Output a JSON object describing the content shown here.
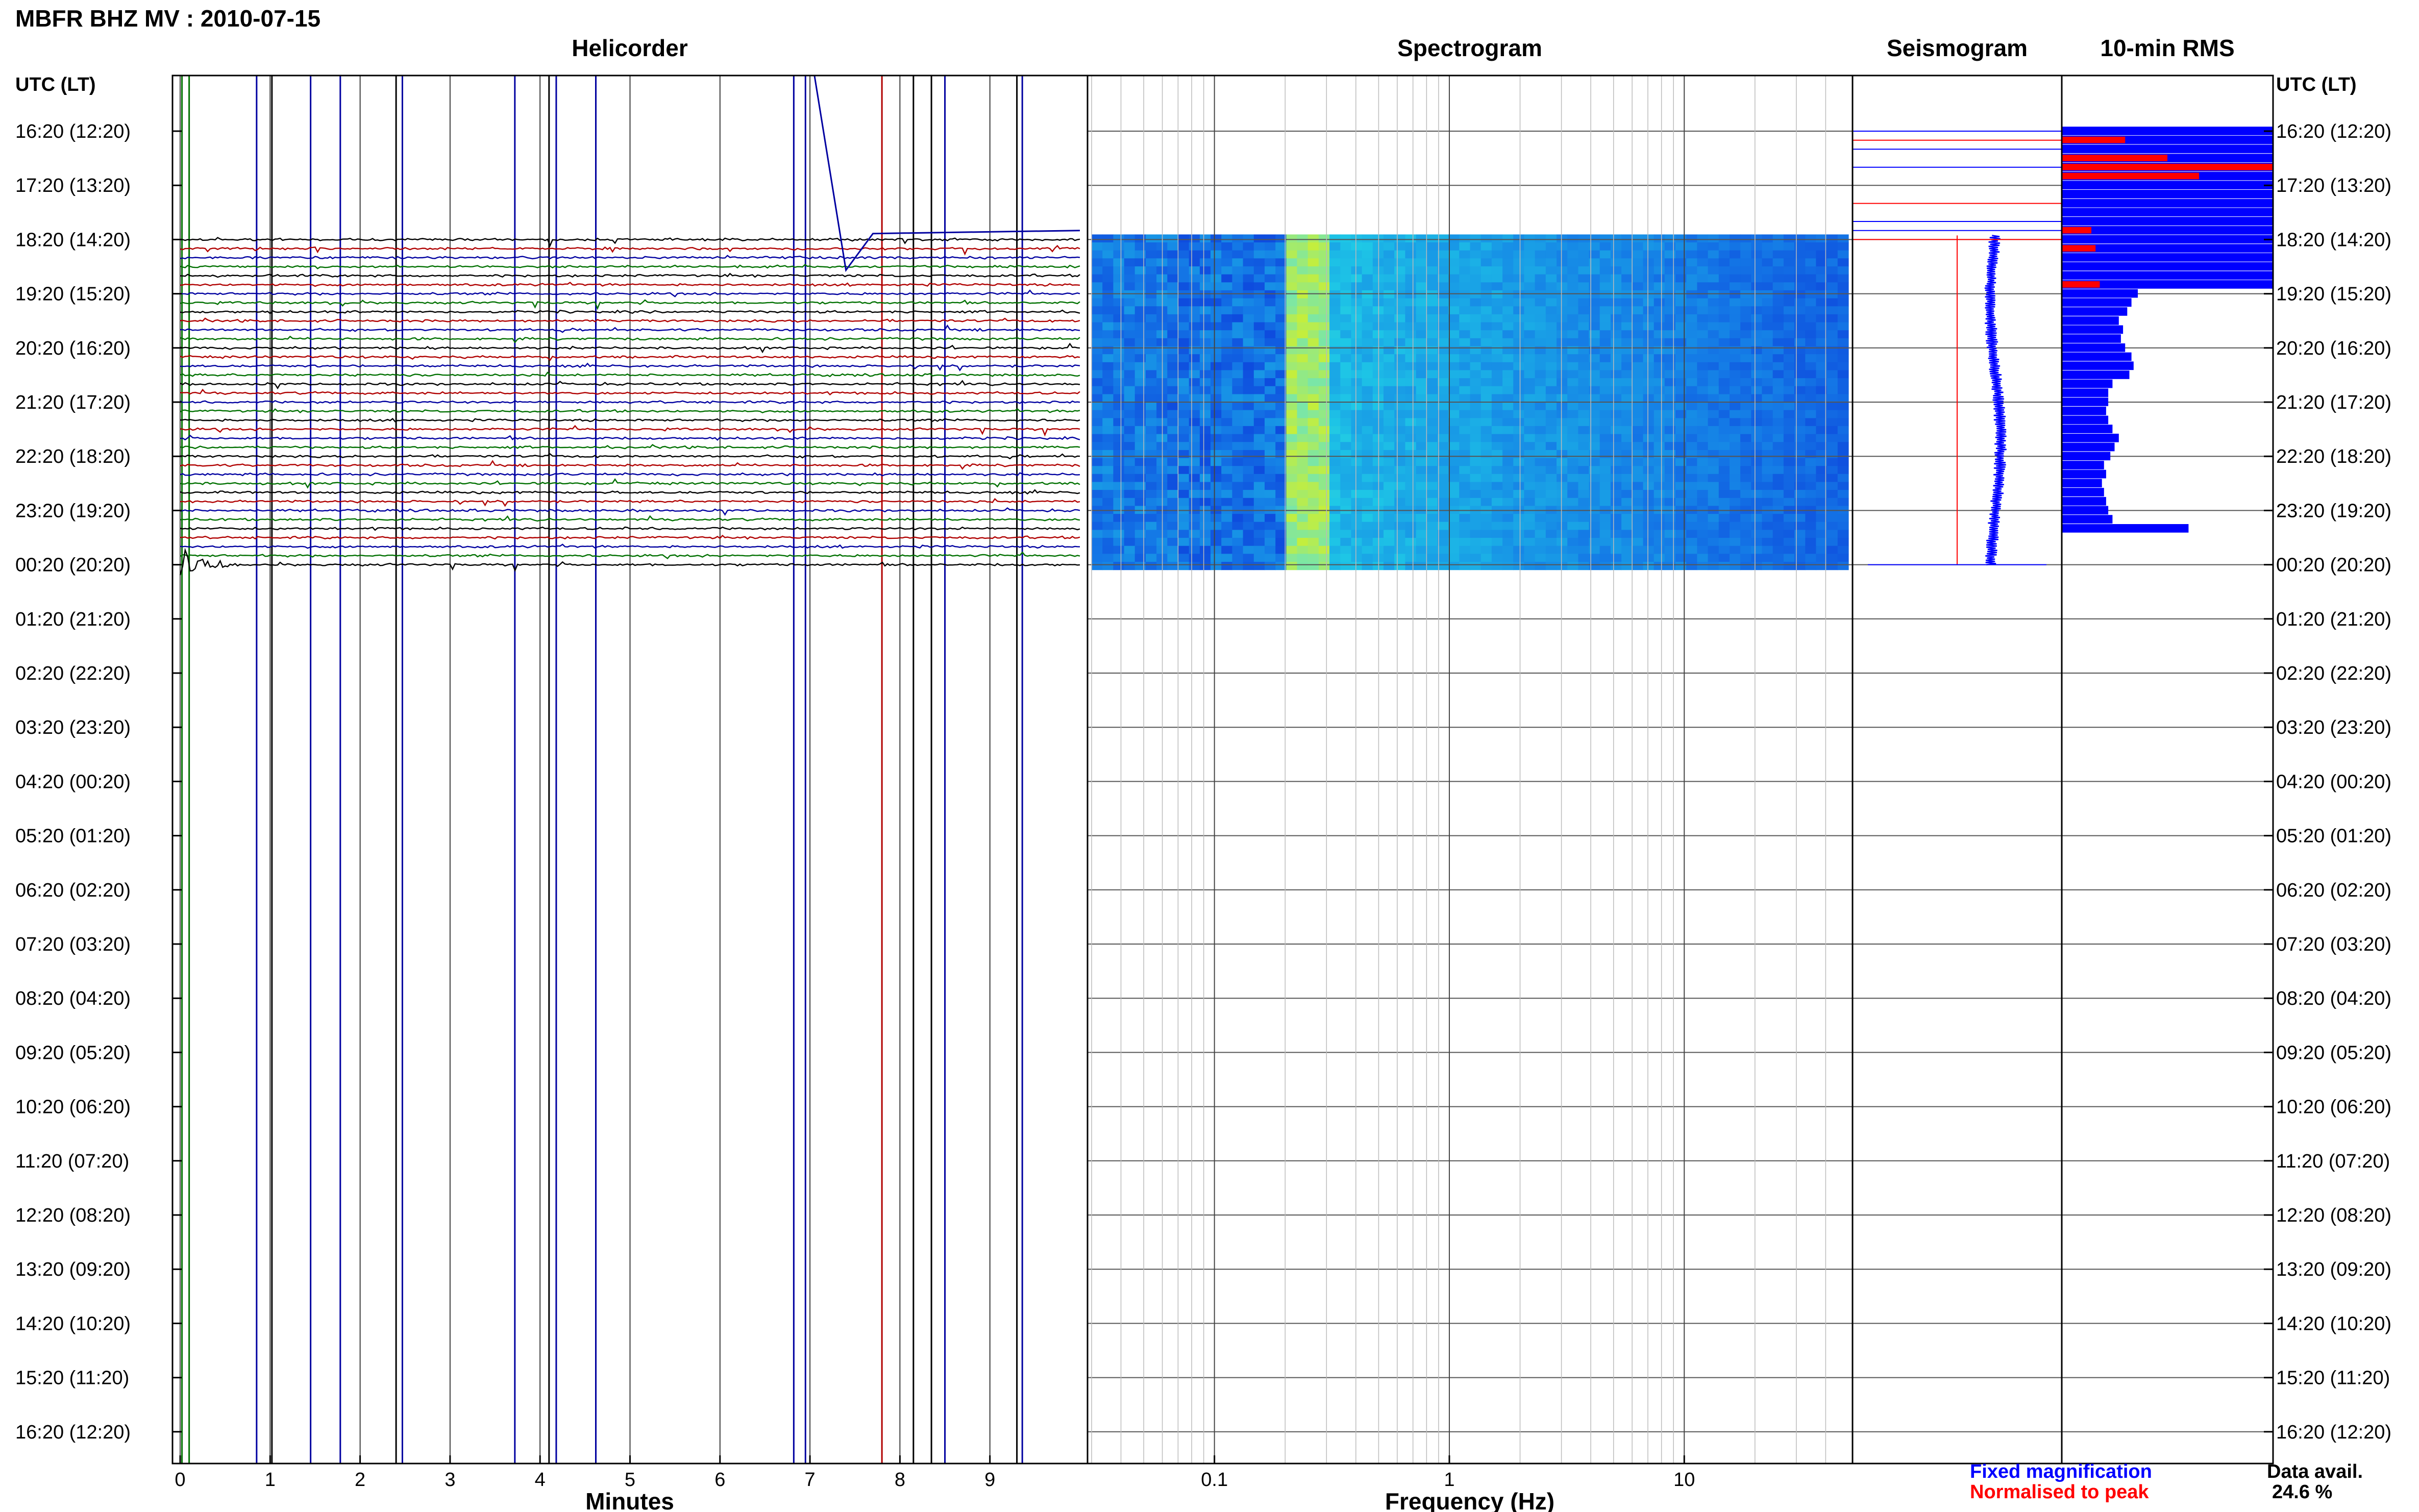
{
  "header": {
    "title": "MBFR BHZ MV : 2010-07-15"
  },
  "panels": {
    "helicorder": "Helicorder",
    "spectrogram": "Spectrogram",
    "seismogram": "Seismogram",
    "rms": "10-min RMS"
  },
  "time_axis": {
    "label": "UTC (LT)",
    "ticks": [
      "16:20 (12:20)",
      "17:20 (13:20)",
      "18:20 (14:20)",
      "19:20 (15:20)",
      "20:20 (16:20)",
      "21:20 (17:20)",
      "22:20 (18:20)",
      "23:20 (19:20)",
      "00:20 (20:20)",
      "01:20 (21:20)",
      "02:20 (22:20)",
      "03:20 (23:20)",
      "04:20 (00:20)",
      "05:20 (01:20)",
      "06:20 (02:20)",
      "07:20 (03:20)",
      "08:20 (04:20)",
      "09:20 (05:20)",
      "10:20 (06:20)",
      "11:20 (07:20)",
      "12:20 (08:20)",
      "13:20 (09:20)",
      "14:20 (10:20)",
      "15:20 (11:20)",
      "16:20 (12:20)"
    ]
  },
  "colors": {
    "trace_cycle": [
      "#000000",
      "#b00000",
      "#0000a0",
      "#007000"
    ],
    "fixed": "#0000ff",
    "normalised": "#ff0000",
    "grid": "#555555",
    "spectrogram_low": "#0a2dd8",
    "spectrogram_high": "#d8f020"
  },
  "chart_data": [
    {
      "type": "line",
      "name": "helicorder",
      "title": "Helicorder",
      "xlabel": "Minutes",
      "xlim": [
        0,
        10
      ],
      "xticks": [
        "0",
        "1",
        "2",
        "3",
        "4",
        "5",
        "6",
        "7",
        "8",
        "9"
      ],
      "ylabel": "UTC (LT)",
      "row_interval_minutes": 10,
      "data_rows_start": "18:20",
      "data_rows_end": "00:20",
      "grid": true
    },
    {
      "type": "heatmap",
      "name": "spectrogram",
      "title": "Spectrogram",
      "xlabel": "Frequency (Hz)",
      "xscale": "log",
      "xlim": [
        0.03,
        50
      ],
      "xticks": [
        "0.1",
        "1",
        "10"
      ],
      "dominant_band_hz": [
        0.2,
        0.3
      ],
      "data_rows_start": "18:20",
      "data_rows_end": "00:20"
    },
    {
      "type": "line",
      "name": "seismogram",
      "title": "Seismogram",
      "legend": [
        "Fixed magnification",
        "Normalised to peak"
      ]
    },
    {
      "type": "bar",
      "name": "10-min RMS",
      "title": "10-min RMS",
      "orientation": "horizontal",
      "rows_start": "16:20",
      "rows_end": "00:20",
      "series": [
        {
          "name": "Fixed magnification",
          "values": [
            1,
            1,
            1,
            1,
            1,
            1,
            1,
            1,
            1,
            1,
            1,
            1,
            1,
            1,
            1,
            1,
            1,
            1,
            0.36,
            0.33,
            0.31,
            0.27,
            0.29,
            0.28,
            0.3,
            0.33,
            0.34,
            0.32,
            0.24,
            0.22,
            0.22,
            0.21,
            0.22,
            0.24,
            0.27,
            0.25,
            0.23,
            0.2,
            0.21,
            0.19,
            0.2,
            0.21,
            0.22,
            0.24,
            0.6
          ]
        },
        {
          "name": "Normalised to peak",
          "values": [
            0,
            0.3,
            0,
            0.5,
            1,
            0.65,
            0,
            0,
            0,
            0,
            0,
            0.14,
            0,
            0.16,
            0,
            0,
            0,
            0.18,
            0,
            0,
            0,
            0,
            0,
            0,
            0,
            0,
            0,
            0,
            0,
            0,
            0,
            0,
            0,
            0,
            0,
            0,
            0,
            0,
            0,
            0,
            0,
            0,
            0,
            0,
            0
          ]
        }
      ]
    }
  ],
  "legend": {
    "fixed": "Fixed magnification",
    "normalised": "Normalised to peak"
  },
  "availability": {
    "label": "Data avail.",
    "value": "24.6 %"
  }
}
